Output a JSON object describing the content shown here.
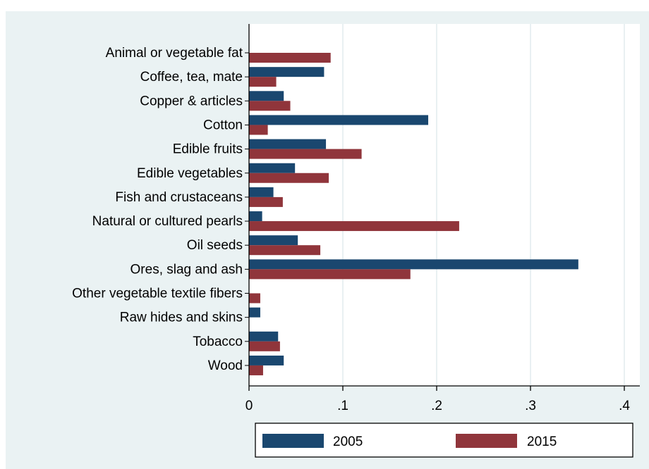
{
  "chart_data": {
    "type": "bar",
    "orientation": "horizontal",
    "categories": [
      "Animal or vegetable fat",
      "Coffee, tea, mate",
      "Copper & articles",
      "Cotton",
      "Edible fruits",
      "Edible vegetables",
      "Fish and crustaceans",
      "Natural or cultured pearls",
      "Oil seeds",
      "Ores, slag and ash",
      "Other vegetable textile fibers",
      "Raw hides and skins",
      "Tobacco",
      "Wood"
    ],
    "series": [
      {
        "name": "2005",
        "color": "#1a476f",
        "values": [
          0.0,
          0.08,
          0.037,
          0.191,
          0.082,
          0.049,
          0.026,
          0.014,
          0.052,
          0.351,
          0.0,
          0.012,
          0.031,
          0.037
        ]
      },
      {
        "name": "2015",
        "color": "#90353b",
        "values": [
          0.087,
          0.029,
          0.044,
          0.02,
          0.12,
          0.085,
          0.036,
          0.224,
          0.076,
          0.172,
          0.012,
          0.0,
          0.033,
          0.015
        ]
      }
    ],
    "xticks": [
      "0",
      ".1",
      ".2",
      ".3",
      ".4"
    ],
    "xlim": [
      0,
      0.4
    ],
    "grid": true,
    "legend_position": "bottom"
  }
}
